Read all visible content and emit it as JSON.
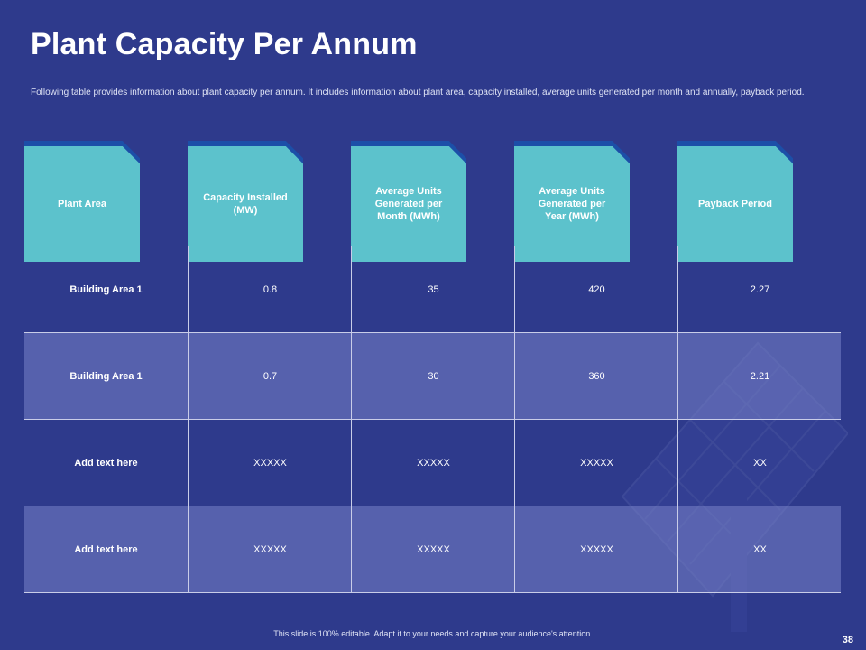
{
  "slide": {
    "title": "Plant Capacity Per Annum",
    "description": "Following table provides information about plant capacity per annum. It includes information about plant area, capacity installed, average units generated per month and annually, payback period.",
    "footer": "This slide is 100% editable. Adapt it to your needs and capture your audience's attention.",
    "page_number": "38"
  },
  "table": {
    "headers": [
      "Plant Area",
      "Capacity Installed (MW)",
      "Average Units Generated per Month (MWh)",
      "Average Units Generated per Year (MWh)",
      "Payback Period"
    ],
    "rows": [
      [
        "Building Area 1",
        "0.8",
        "35",
        "420",
        "2.27"
      ],
      [
        "Building Area 1",
        "0.7",
        "30",
        "360",
        "2.21"
      ],
      [
        "Add text here",
        "XXXXX",
        "XXXXX",
        "XXXXX",
        "XX"
      ],
      [
        "Add text here",
        "XXXXX",
        "XXXXX",
        "XXXXX",
        "XX"
      ]
    ]
  },
  "decoration": {
    "icon": "solar-panel-icon"
  },
  "colors": {
    "background": "#2e3a8c",
    "header_card": "#5cc2cc",
    "header_card_shadow": "#1c4fa8",
    "alt_row": "#6f78c0"
  }
}
